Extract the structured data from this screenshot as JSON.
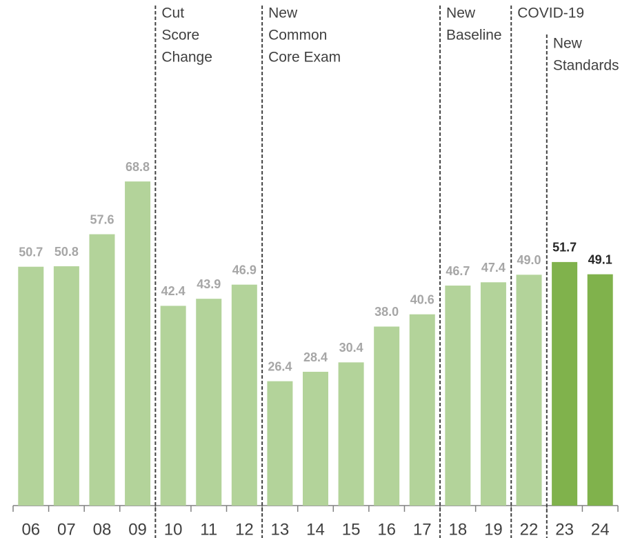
{
  "chart_data": {
    "type": "bar",
    "categories": [
      "06",
      "07",
      "08",
      "09",
      "10",
      "11",
      "12",
      "13",
      "14",
      "15",
      "16",
      "17",
      "18",
      "19",
      "22",
      "23",
      "24"
    ],
    "values": [
      50.7,
      50.8,
      57.6,
      68.8,
      42.4,
      43.9,
      46.9,
      26.4,
      28.4,
      30.4,
      38.0,
      40.6,
      46.7,
      47.4,
      49.0,
      51.7,
      49.1
    ],
    "value_labels": [
      "50.7",
      "50.8",
      "57.6",
      "68.8",
      "42.4",
      "43.9",
      "46.9",
      "26.4",
      "28.4",
      "30.4",
      "38.0",
      "40.6",
      "46.7",
      "47.4",
      "49.0",
      "51.7",
      "49.1"
    ],
    "colors": [
      "#b3d39a",
      "#b3d39a",
      "#b3d39a",
      "#b3d39a",
      "#b3d39a",
      "#b3d39a",
      "#b3d39a",
      "#b3d39a",
      "#b3d39a",
      "#b3d39a",
      "#b3d39a",
      "#b3d39a",
      "#b3d39a",
      "#b3d39a",
      "#b3d39a",
      "#80b24c",
      "#80b24c"
    ],
    "value_label_colors": [
      "#a6a6a6",
      "#a6a6a6",
      "#a6a6a6",
      "#a6a6a6",
      "#a6a6a6",
      "#a6a6a6",
      "#a6a6a6",
      "#a6a6a6",
      "#a6a6a6",
      "#a6a6a6",
      "#a6a6a6",
      "#a6a6a6",
      "#a6a6a6",
      "#a6a6a6",
      "#a6a6a6",
      "#262626",
      "#262626"
    ],
    "ylim": [
      0,
      100
    ],
    "annotations": [
      {
        "lines": [
          "Cut",
          "Score",
          "Change"
        ]
      },
      {
        "lines": [
          "New",
          "Common",
          "Core Exam"
        ]
      },
      {
        "lines": [
          "New",
          "Baseline"
        ]
      },
      {
        "lines": [
          "COVID-19"
        ]
      },
      {
        "lines": [
          "New",
          "Standards"
        ]
      }
    ]
  }
}
